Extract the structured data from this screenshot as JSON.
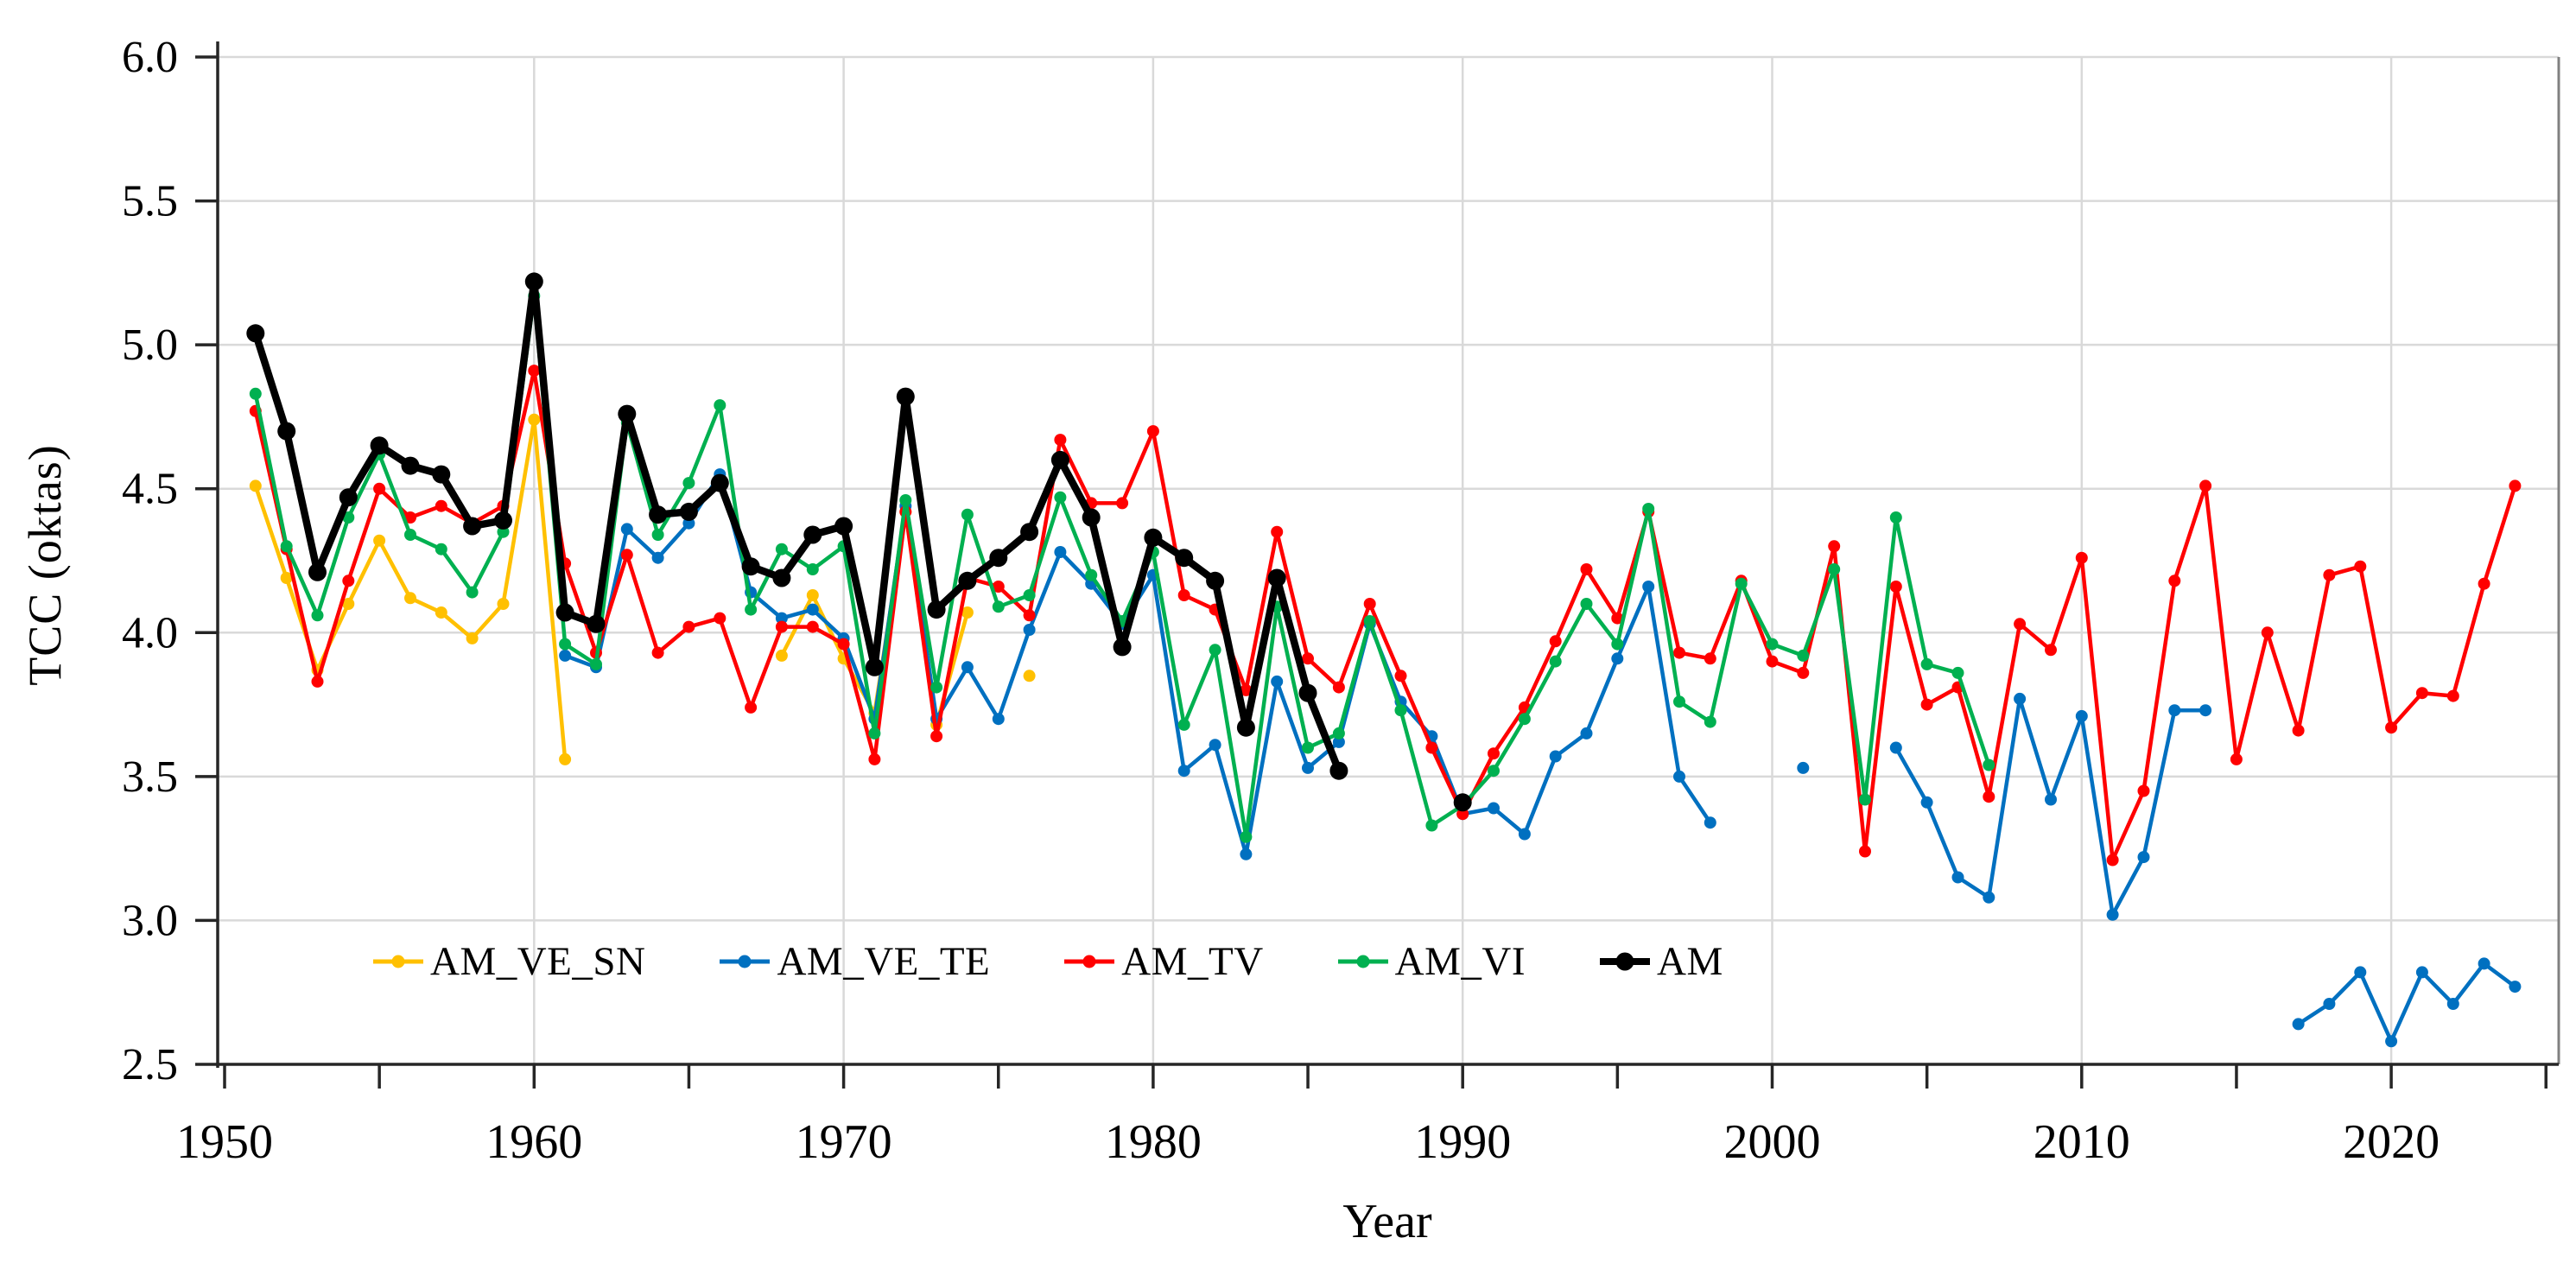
{
  "chart_data": {
    "type": "line",
    "title": "",
    "xlabel": "Year",
    "ylabel": "TCC (oktas)",
    "xlim": [
      1949.7,
      2025.3
    ],
    "ylim": [
      2.5,
      6.0
    ],
    "y_ticks": [
      6.0,
      5.5,
      5.0,
      4.5,
      4.0,
      3.5,
      3.0,
      2.5
    ],
    "y_tick_labels": [
      "6.0",
      "5.5",
      "5.0",
      "4.5",
      "4.0",
      "3.5",
      "3.0",
      "2.5"
    ],
    "x_major_ticks": [
      1950,
      1960,
      1970,
      1980,
      1990,
      2000,
      2010,
      2020
    ],
    "x_tick_labels": [
      "1950",
      "1960",
      "1970",
      "1980",
      "1990",
      "2000",
      "2010",
      "2020"
    ],
    "x_minor_tick_step": 5,
    "grid": {
      "horizontal_step": 0.5,
      "vertical_step": 10,
      "color": "#d9d9d9",
      "on": true
    },
    "axis_color": "#262626",
    "plot_right_border_color": "#808080",
    "legend_position": "inside-bottom",
    "series": [
      {
        "name": "AM_VE_SN",
        "color": "#FFC000",
        "line_width": 4.5,
        "marker_radius": 7,
        "segments": [
          {
            "start_year": 1951,
            "values": [
              4.51,
              4.19,
              3.87,
              4.1,
              4.32,
              4.12,
              4.07,
              3.98,
              4.1,
              4.74,
              3.56
            ]
          },
          {
            "start_year": 1968,
            "values": [
              3.92,
              4.13,
              3.91,
              3.72,
              4.42,
              3.68,
              4.07
            ]
          },
          {
            "start_year": 1976,
            "values": [
              3.85
            ]
          }
        ]
      },
      {
        "name": "AM_VE_TE",
        "color": "#0070C0",
        "line_width": 4.5,
        "marker_radius": 7,
        "segments": [
          {
            "start_year": 1961,
            "values": [
              3.92,
              3.88,
              4.36,
              4.26,
              4.38,
              4.55,
              4.14,
              4.05,
              4.08,
              3.98,
              3.7,
              4.44,
              3.7,
              3.88,
              3.7,
              4.01,
              4.28,
              4.17,
              4.03,
              4.2,
              3.52,
              3.61,
              3.23,
              3.83,
              3.53,
              3.62,
              4.03,
              3.76,
              3.64,
              3.37,
              3.39,
              3.3,
              3.57,
              3.65,
              3.91,
              4.16,
              3.5,
              3.34
            ]
          },
          {
            "start_year": 2001,
            "values": [
              3.53
            ]
          },
          {
            "start_year": 2004,
            "values": [
              3.6,
              3.41,
              3.15,
              3.08,
              3.77,
              3.42,
              3.71,
              3.02,
              3.22,
              3.73,
              3.73
            ]
          },
          {
            "start_year": 2017,
            "values": [
              2.64,
              2.71,
              2.82,
              2.58,
              2.82,
              2.71,
              2.85,
              2.77
            ]
          }
        ]
      },
      {
        "name": "AM_TV",
        "color": "#FF0000",
        "line_width": 4.5,
        "marker_radius": 7,
        "segments": [
          {
            "start_year": 1951,
            "values": [
              4.77,
              4.29,
              3.83,
              4.18,
              4.5,
              4.4,
              4.44,
              4.38,
              4.44,
              4.91,
              4.24,
              3.93,
              4.27,
              3.93,
              4.02,
              4.05,
              3.74,
              4.02,
              4.02,
              3.96,
              3.56,
              4.42,
              3.64,
              4.19,
              4.16,
              4.06,
              4.67,
              4.45,
              4.45,
              4.7,
              4.13,
              4.08,
              3.8,
              4.35,
              3.91,
              3.81,
              4.1,
              3.85,
              3.6,
              3.37,
              3.58,
              3.74,
              3.97,
              4.22,
              4.05,
              4.42,
              3.93,
              3.91,
              4.18,
              3.9,
              3.86,
              4.3,
              3.24,
              4.16,
              3.75,
              3.81,
              3.43,
              4.03,
              3.94,
              4.26,
              3.21,
              3.45,
              4.18,
              4.51,
              3.56,
              4.0,
              3.66,
              4.2,
              4.23,
              3.67,
              3.79,
              3.78,
              4.17,
              4.51
            ]
          }
        ]
      },
      {
        "name": "AM_VI",
        "color": "#00B050",
        "line_width": 4.5,
        "marker_radius": 7,
        "segments": [
          {
            "start_year": 1951,
            "values": [
              4.83,
              4.3,
              4.06,
              4.4,
              4.62,
              4.34,
              4.29,
              4.14,
              4.35,
              5.17,
              3.96,
              3.89,
              4.73,
              4.34,
              4.52,
              4.79,
              4.08,
              4.29,
              4.22,
              4.3,
              3.65,
              4.46,
              3.81,
              4.41,
              4.09,
              4.13,
              4.47,
              4.2,
              4.04,
              4.28,
              3.68,
              3.94,
              3.29,
              4.09,
              3.6,
              3.65,
              4.04,
              3.73,
              3.33,
              3.4,
              3.52,
              3.7,
              3.9,
              4.1,
              3.96,
              4.43,
              3.76,
              3.69,
              4.17,
              3.96,
              3.92,
              4.22,
              3.42,
              4.4,
              3.89,
              3.86,
              3.54
            ]
          }
        ]
      },
      {
        "name": "AM",
        "color": "#000000",
        "line_width": 8.5,
        "marker_radius": 10.5,
        "segments": [
          {
            "start_year": 1951,
            "values": [
              5.04,
              4.7,
              4.21,
              4.47,
              4.65,
              4.58,
              4.55,
              4.37,
              4.39,
              5.22,
              4.07,
              4.03,
              4.76,
              4.41,
              4.42,
              4.52,
              4.23,
              4.19,
              4.34,
              4.37,
              3.88,
              4.82,
              4.08,
              4.18,
              4.26,
              4.35,
              4.6,
              4.4,
              3.95,
              4.33,
              4.26,
              4.18,
              3.67,
              4.19,
              3.79,
              3.52
            ]
          },
          {
            "start_year": 1990,
            "values": [
              3.41
            ]
          }
        ]
      }
    ]
  },
  "axis": {
    "xlabel": "Year",
    "ylabel": "TCC (oktas)"
  },
  "legend": {
    "items": [
      {
        "label": "AM_VE_SN",
        "color": "#FFC000"
      },
      {
        "label": "AM_VE_TE",
        "color": "#0070C0"
      },
      {
        "label": "AM_TV",
        "color": "#FF0000"
      },
      {
        "label": "AM_VI",
        "color": "#00B050"
      },
      {
        "label": "AM",
        "color": "#000000"
      }
    ]
  }
}
